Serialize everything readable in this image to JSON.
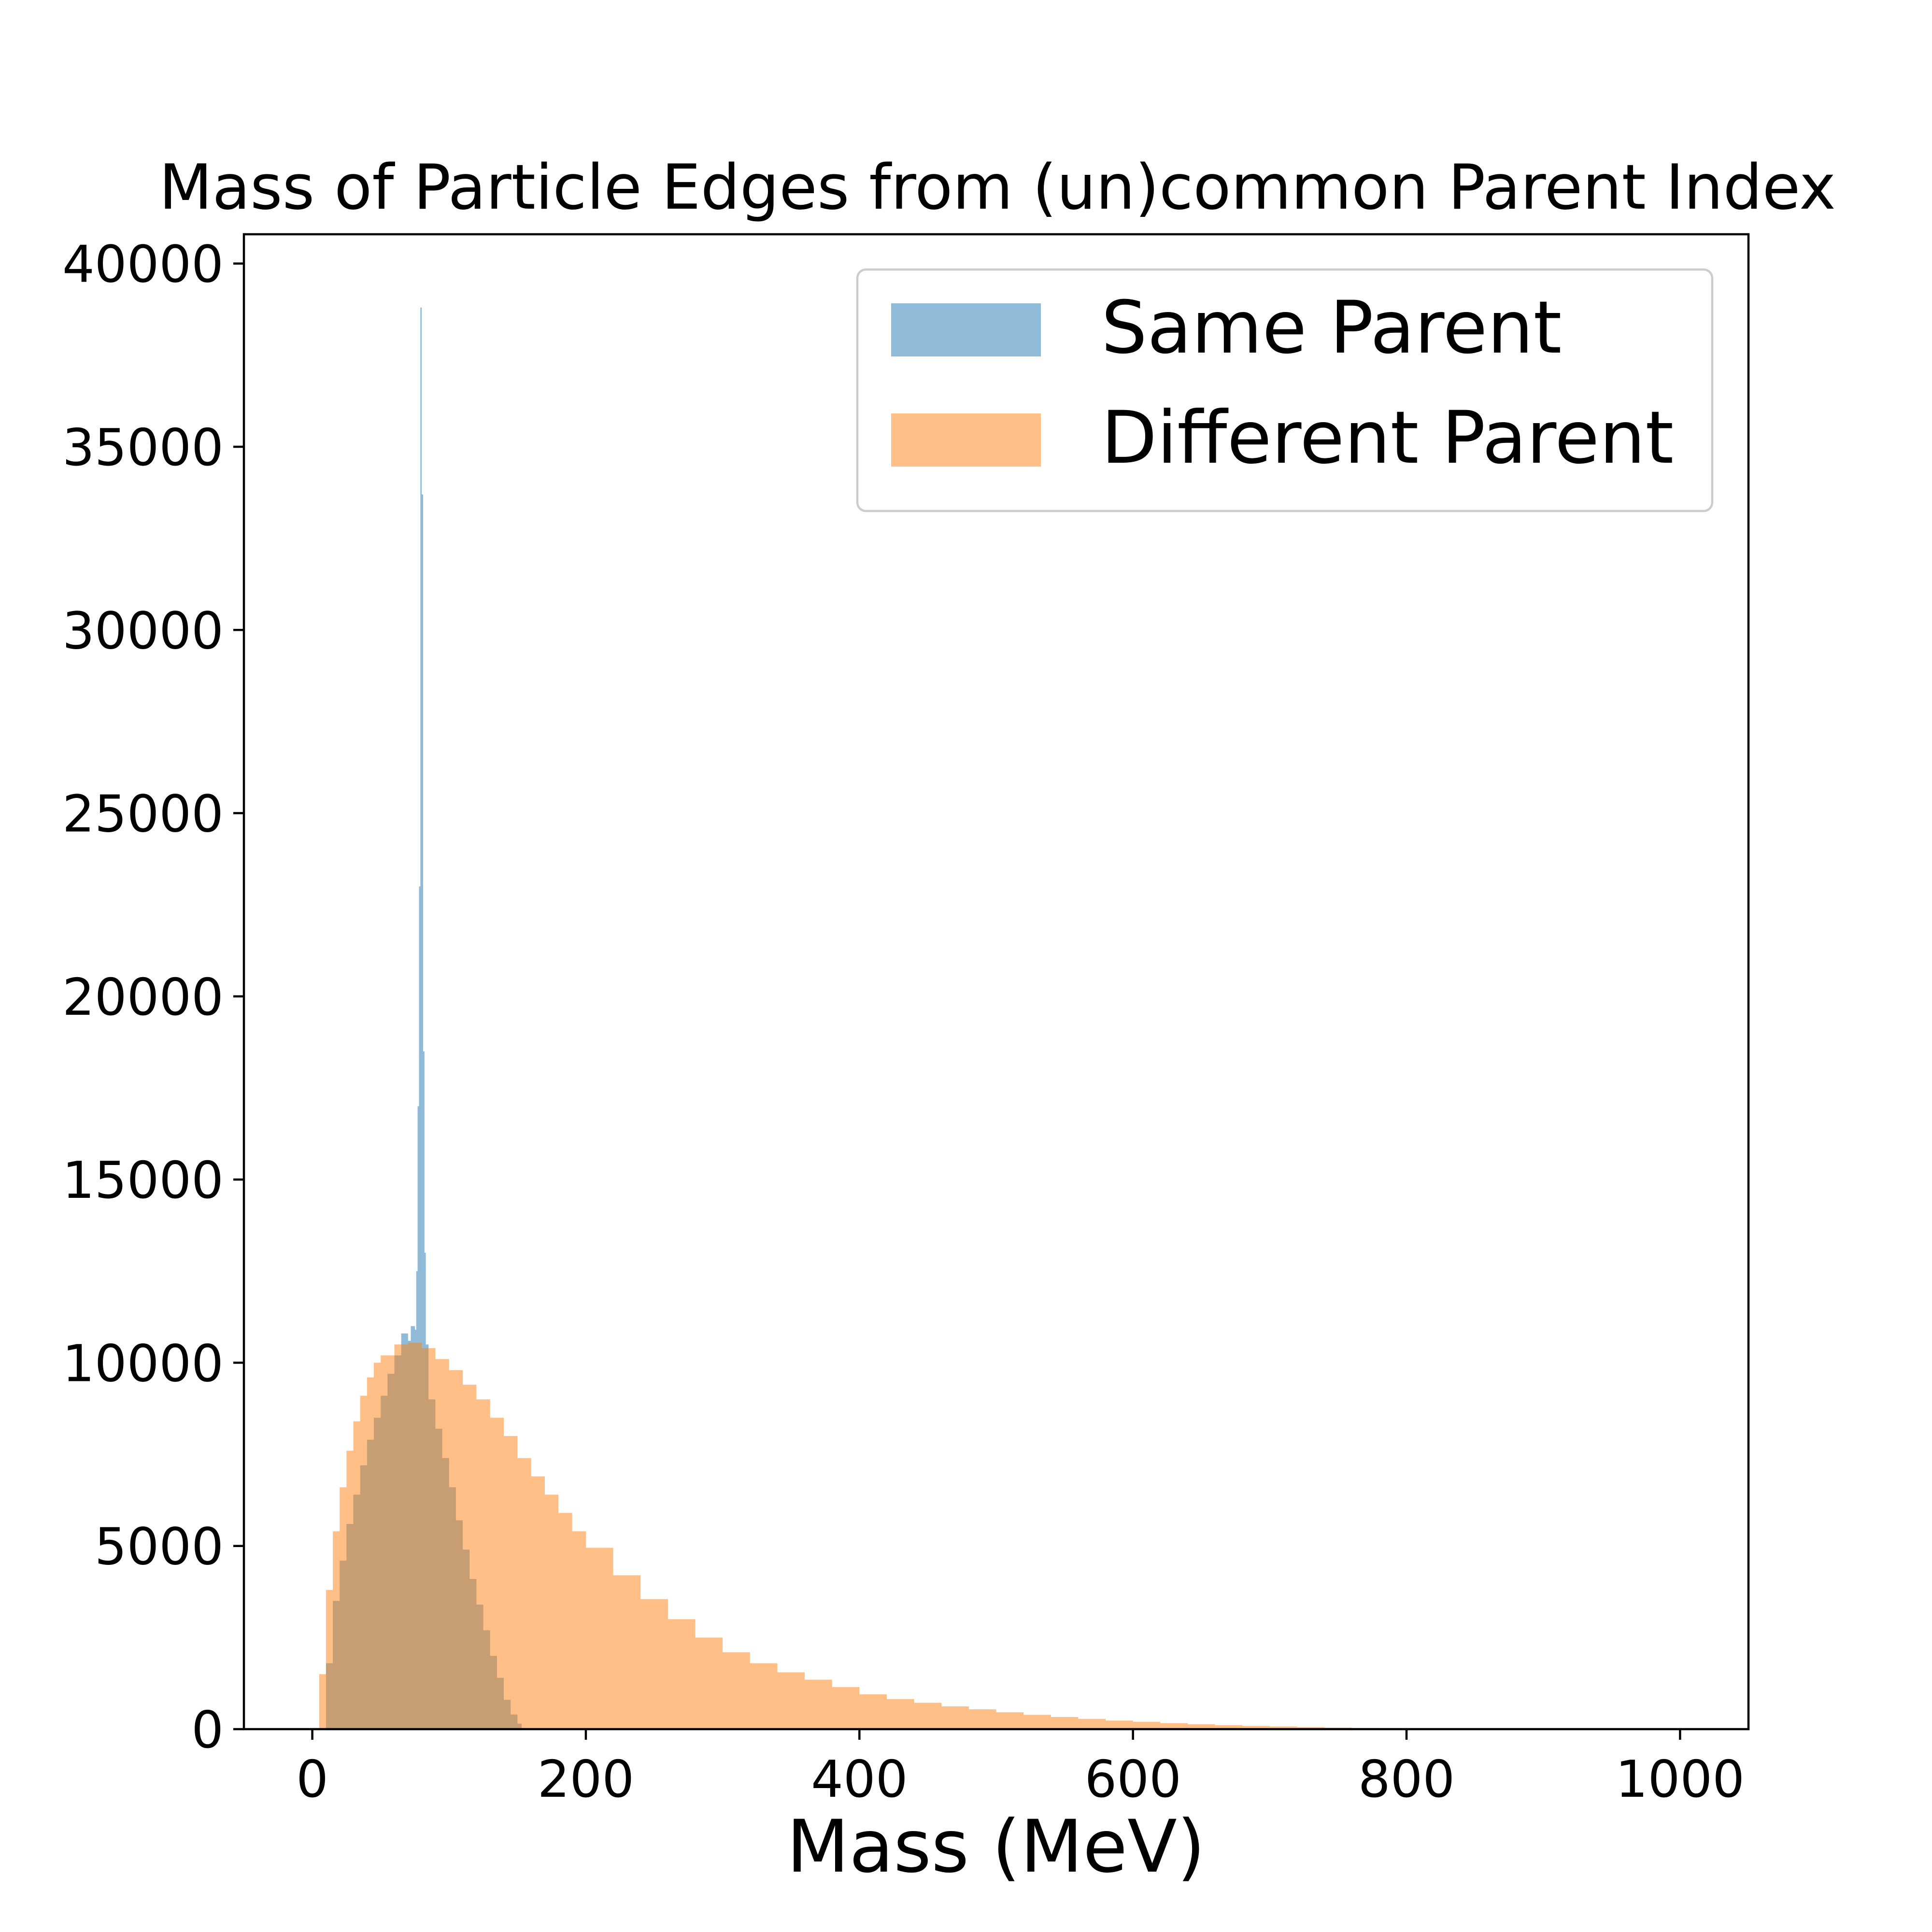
{
  "chart_data": {
    "type": "histogram",
    "title": "Mass of Particle Edges from (un)common Parent Index",
    "xlabel": "Mass (MeV)",
    "ylabel": "",
    "xlim": [
      -50,
      1050
    ],
    "ylim": [
      0,
      40800
    ],
    "x_ticks": [
      0,
      200,
      400,
      600,
      800,
      1000
    ],
    "y_ticks": [
      0,
      5000,
      10000,
      15000,
      20000,
      25000,
      30000,
      35000,
      40000
    ],
    "grid": false,
    "legend": {
      "placement": "upper-right"
    },
    "series": [
      {
        "name": "Same Parent",
        "color": "#1f77b4",
        "opacity": 0.5,
        "points": [
          [
            0,
            0
          ],
          [
            5,
            0
          ],
          [
            10,
            1800
          ],
          [
            15,
            3500
          ],
          [
            20,
            4600
          ],
          [
            25,
            5600
          ],
          [
            30,
            6400
          ],
          [
            35,
            7200
          ],
          [
            40,
            7900
          ],
          [
            45,
            8500
          ],
          [
            50,
            9100
          ],
          [
            55,
            9700
          ],
          [
            60,
            10200
          ],
          [
            65,
            10800
          ],
          [
            70,
            10600
          ],
          [
            72,
            11000
          ],
          [
            75,
            10900
          ],
          [
            76,
            12500
          ],
          [
            77,
            17000
          ],
          [
            78,
            23000
          ],
          [
            79,
            38800
          ],
          [
            80,
            33700
          ],
          [
            81,
            18500
          ],
          [
            82,
            13000
          ],
          [
            83,
            10500
          ],
          [
            85,
            9000
          ],
          [
            90,
            8200
          ],
          [
            95,
            7400
          ],
          [
            100,
            6600
          ],
          [
            105,
            5700
          ],
          [
            110,
            4900
          ],
          [
            115,
            4100
          ],
          [
            120,
            3400
          ],
          [
            125,
            2700
          ],
          [
            130,
            2000
          ],
          [
            135,
            1400
          ],
          [
            140,
            800
          ],
          [
            145,
            400
          ],
          [
            150,
            150
          ],
          [
            153,
            0
          ],
          [
            160,
            0
          ]
        ]
      },
      {
        "name": "Different Parent",
        "color": "#ff7f0e",
        "opacity": 0.5,
        "points": [
          [
            0,
            0
          ],
          [
            5,
            1500
          ],
          [
            10,
            3800
          ],
          [
            15,
            5400
          ],
          [
            20,
            6600
          ],
          [
            25,
            7600
          ],
          [
            30,
            8400
          ],
          [
            35,
            9100
          ],
          [
            40,
            9600
          ],
          [
            45,
            10000
          ],
          [
            50,
            10200
          ],
          [
            60,
            10500
          ],
          [
            70,
            10550
          ],
          [
            80,
            10400
          ],
          [
            90,
            10100
          ],
          [
            100,
            9800
          ],
          [
            110,
            9400
          ],
          [
            120,
            9000
          ],
          [
            130,
            8500
          ],
          [
            140,
            8000
          ],
          [
            150,
            7400
          ],
          [
            160,
            6900
          ],
          [
            170,
            6400
          ],
          [
            180,
            5900
          ],
          [
            190,
            5400
          ],
          [
            200,
            4950
          ],
          [
            220,
            4200
          ],
          [
            240,
            3550
          ],
          [
            260,
            3000
          ],
          [
            280,
            2500
          ],
          [
            300,
            2100
          ],
          [
            320,
            1800
          ],
          [
            340,
            1550
          ],
          [
            360,
            1350
          ],
          [
            380,
            1150
          ],
          [
            400,
            950
          ],
          [
            420,
            820
          ],
          [
            440,
            720
          ],
          [
            460,
            620
          ],
          [
            480,
            540
          ],
          [
            500,
            460
          ],
          [
            520,
            390
          ],
          [
            540,
            330
          ],
          [
            560,
            280
          ],
          [
            580,
            235
          ],
          [
            600,
            200
          ],
          [
            620,
            165
          ],
          [
            640,
            135
          ],
          [
            660,
            110
          ],
          [
            680,
            90
          ],
          [
            700,
            72
          ],
          [
            720,
            56
          ],
          [
            740,
            42
          ],
          [
            760,
            30
          ],
          [
            780,
            20
          ],
          [
            800,
            13
          ],
          [
            850,
            6
          ],
          [
            900,
            3
          ],
          [
            950,
            1
          ],
          [
            1000,
            0
          ]
        ]
      }
    ]
  }
}
